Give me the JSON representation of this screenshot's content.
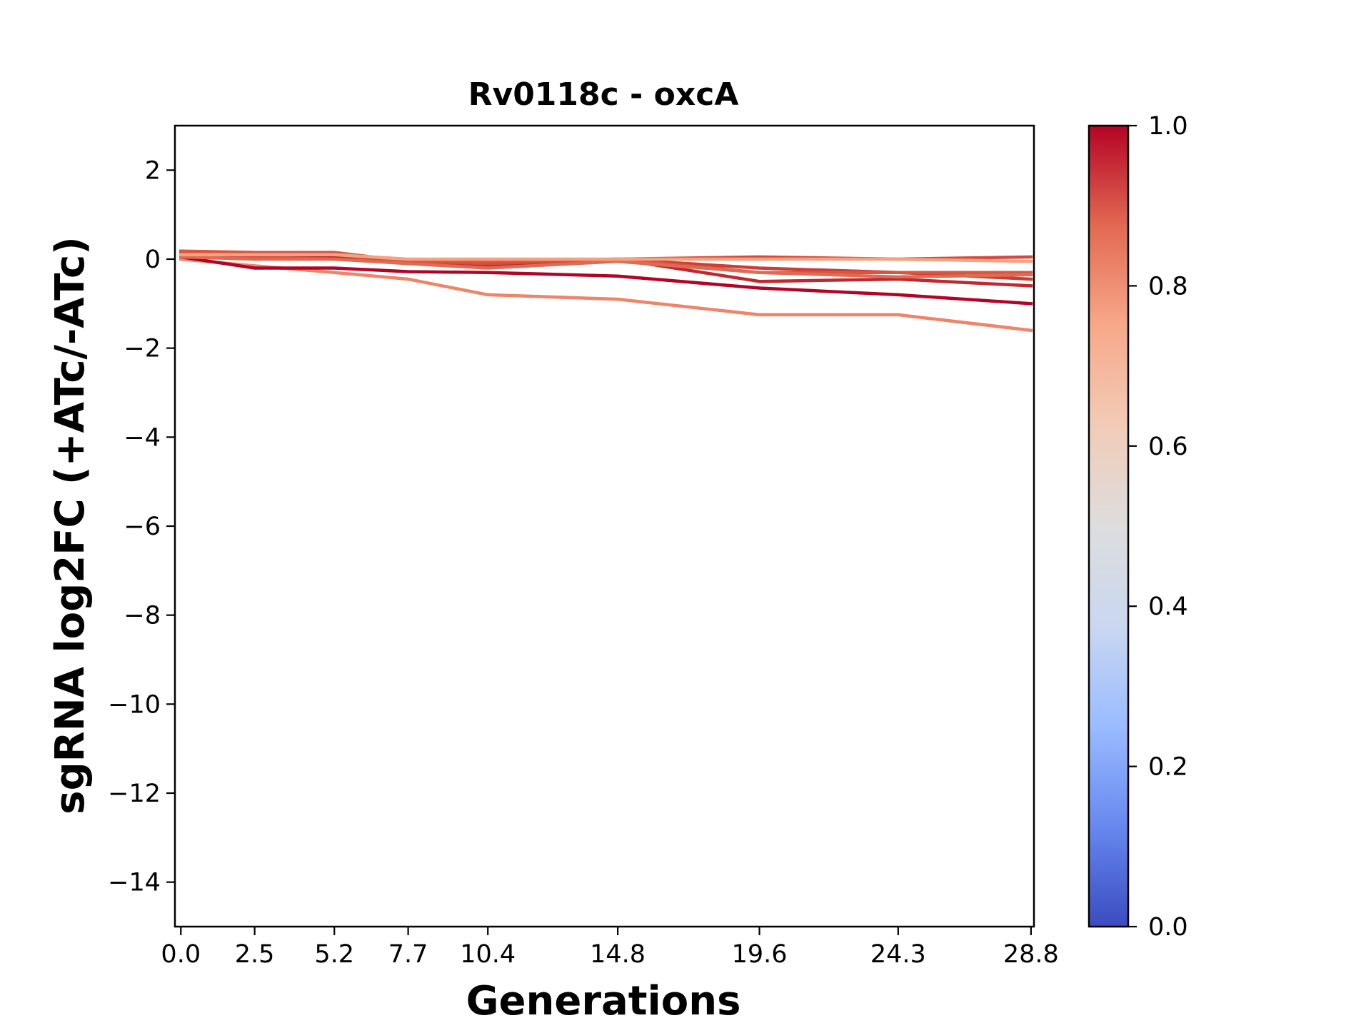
{
  "chart_data": {
    "type": "line",
    "title": "Rv0118c - oxcA",
    "xlabel": "Generations",
    "ylabel": "sgRNA log2FC (+ATc/-ATc)",
    "x": [
      0.0,
      2.5,
      5.2,
      7.7,
      10.4,
      14.8,
      19.6,
      24.3,
      28.8
    ],
    "x_tick_labels": [
      "0.0",
      "2.5",
      "5.2",
      "7.7",
      "10.4",
      "14.8",
      "19.6",
      "24.3",
      "28.8"
    ],
    "xlim": [
      -0.2,
      28.9
    ],
    "ylim": [
      -15,
      3
    ],
    "y_ticks": [
      2,
      0,
      -2,
      -4,
      -6,
      -8,
      -10,
      -12,
      -14
    ],
    "y_tick_labels": [
      "2",
      "0",
      "−2",
      "−4",
      "−6",
      "−8",
      "−10",
      "−12",
      "−14"
    ],
    "grid": false,
    "colorbar": {
      "colormap": "coolwarm",
      "range": [
        0.0,
        1.0
      ],
      "ticks": [
        0.0,
        0.2,
        0.4,
        0.6,
        0.8,
        1.0
      ],
      "tick_labels": [
        "0.0",
        "0.2",
        "0.4",
        "0.6",
        "0.8",
        "1.0"
      ],
      "stops": [
        "#3b4cc0",
        "#6788ee",
        "#9abbff",
        "#c9d7f0",
        "#dddddd",
        "#f2cbb7",
        "#f7a889",
        "#e26952",
        "#b40426"
      ]
    },
    "series": [
      {
        "color": "#ee8468",
        "values": [
          0.0,
          -0.15,
          -0.3,
          -0.45,
          -0.8,
          -0.9,
          -1.25,
          -1.25,
          -1.6
        ]
      },
      {
        "color": "#b40426",
        "values": [
          0.05,
          -0.2,
          -0.2,
          -0.28,
          -0.3,
          -0.38,
          -0.65,
          -0.8,
          -1.0
        ]
      },
      {
        "color": "#c0282f",
        "values": [
          0.15,
          0.1,
          0.05,
          -0.1,
          -0.15,
          0.0,
          -0.5,
          -0.45,
          -0.6
        ]
      },
      {
        "color": "#cc3d38",
        "values": [
          0.15,
          0.1,
          0.1,
          -0.05,
          -0.05,
          0.0,
          -0.2,
          -0.3,
          -0.45
        ]
      },
      {
        "color": "#d24c3e",
        "values": [
          0.1,
          0.05,
          0.0,
          -0.05,
          -0.1,
          0.0,
          0.05,
          0.0,
          0.05
        ]
      },
      {
        "color": "#d8563f",
        "values": [
          0.18,
          0.15,
          0.15,
          -0.05,
          -0.05,
          0.0,
          -0.3,
          -0.3,
          -0.3
        ]
      },
      {
        "color": "#e06b55",
        "values": [
          0.05,
          0.0,
          0.0,
          -0.1,
          -0.2,
          -0.05,
          -0.3,
          -0.4,
          -0.35
        ]
      },
      {
        "color": "#f4a282",
        "values": [
          0.1,
          0.1,
          0.1,
          0.0,
          0.0,
          0.0,
          0.0,
          0.0,
          -0.05
        ]
      }
    ]
  }
}
